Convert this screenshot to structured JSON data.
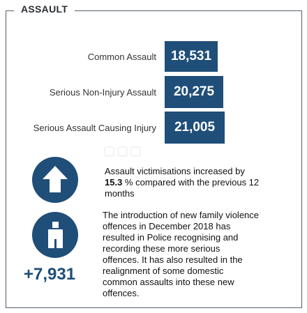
{
  "section": {
    "title": "ASSAULT"
  },
  "rows": [
    {
      "label": "Common Assault",
      "value": "18,531"
    },
    {
      "label": "Serious Non-Injury Assault",
      "value": "20,275"
    },
    {
      "label": "Serious Assault Causing Injury",
      "value": "21,005"
    }
  ],
  "increase": {
    "line1": "Assault victimisations increased by",
    "percent": "15.3",
    "line2_rest": " % compared with the previous 12",
    "line3": "months"
  },
  "family_violence": {
    "count": "+7,931",
    "lines": [
      "The introduction of new family violence",
      "offences in December 2018 has",
      "resulted in Police recognising and",
      "recording these more serious",
      "offences. It has also resulted in the",
      "realignment of  some domestic",
      "common assaults into these new",
      "offences."
    ]
  },
  "icons": [
    "arrow-up-icon",
    "person-icon"
  ],
  "colors": {
    "accent": "#1f4e79",
    "border": "#555e68"
  }
}
